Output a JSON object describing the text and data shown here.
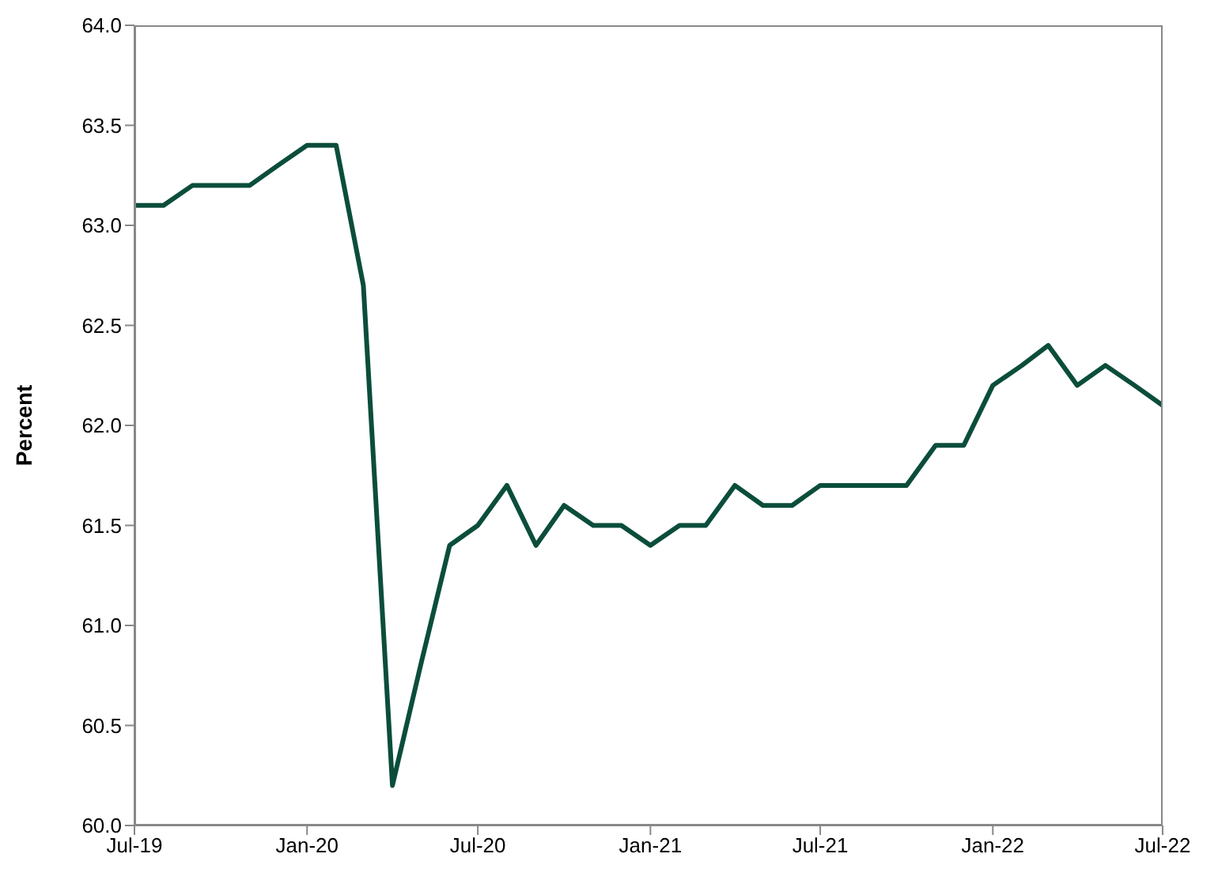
{
  "chart_data": {
    "type": "line",
    "ylabel": "Percent",
    "x": [
      "2019-07",
      "2019-08",
      "2019-09",
      "2019-10",
      "2019-11",
      "2019-12",
      "2020-01",
      "2020-02",
      "2020-03",
      "2020-04",
      "2020-05",
      "2020-06",
      "2020-07",
      "2020-08",
      "2020-09",
      "2020-10",
      "2020-11",
      "2020-12",
      "2021-01",
      "2021-02",
      "2021-03",
      "2021-04",
      "2021-05",
      "2021-06",
      "2021-07",
      "2021-08",
      "2021-09",
      "2021-10",
      "2021-11",
      "2021-12",
      "2022-01",
      "2022-02",
      "2022-03",
      "2022-04",
      "2022-05",
      "2022-06",
      "2022-07"
    ],
    "series": [
      {
        "color": "#0b4d3b",
        "values": [
          63.1,
          63.1,
          63.2,
          63.2,
          63.2,
          63.3,
          63.4,
          63.4,
          62.7,
          60.2,
          60.8,
          61.4,
          61.5,
          61.7,
          61.4,
          61.6,
          61.5,
          61.5,
          61.4,
          61.5,
          61.5,
          61.7,
          61.6,
          61.6,
          61.7,
          61.7,
          61.7,
          61.7,
          61.9,
          61.9,
          62.2,
          62.3,
          62.4,
          62.2,
          62.3,
          62.2,
          62.1
        ]
      }
    ],
    "xlim": [
      "2019-07",
      "2022-07"
    ],
    "xticks": [
      {
        "value": "2019-07",
        "label": "Jul-19"
      },
      {
        "value": "2020-01",
        "label": "Jan-20"
      },
      {
        "value": "2020-07",
        "label": "Jul-20"
      },
      {
        "value": "2021-01",
        "label": "Jan-21"
      },
      {
        "value": "2021-07",
        "label": "Jul-21"
      },
      {
        "value": "2022-01",
        "label": "Jan-22"
      },
      {
        "value": "2022-07",
        "label": "Jul-22"
      }
    ],
    "ylim": [
      60,
      64
    ],
    "yticks": [
      {
        "value": 60,
        "label": "60.0"
      },
      {
        "value": 60.5,
        "label": "60.5"
      },
      {
        "value": 61,
        "label": "61.0"
      },
      {
        "value": 61.5,
        "label": "61.5"
      },
      {
        "value": 62,
        "label": "62.0"
      },
      {
        "value": 62.5,
        "label": "62.5"
      },
      {
        "value": 63,
        "label": "63.0"
      },
      {
        "value": 63.5,
        "label": "63.5"
      },
      {
        "value": 64,
        "label": "64.0"
      }
    ],
    "grid": false,
    "legend": false,
    "marker": "none",
    "line_style": "solid"
  }
}
